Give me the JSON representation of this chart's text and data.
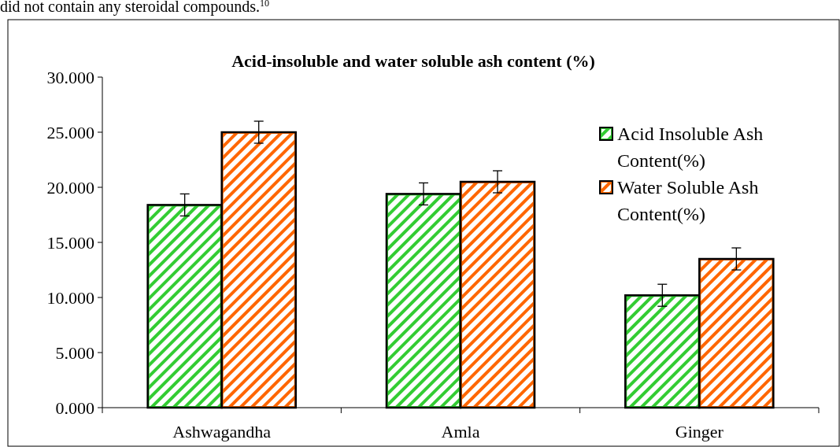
{
  "chart_data": {
    "type": "bar",
    "title": "Acid-insoluble and water soluble ash content (%)",
    "categories": [
      "Ashwagandha",
      "Amla",
      "Ginger"
    ],
    "series": [
      {
        "name": "Acid Insoluble Ash Content(%)",
        "color": "#33cc33",
        "values": [
          18.4,
          19.4,
          10.2
        ],
        "errors": [
          1,
          1,
          1
        ]
      },
      {
        "name": "Water Soluble Ash Content(%)",
        "color": "#ff6600",
        "values": [
          25.0,
          20.5,
          13.5
        ],
        "errors": [
          1,
          1,
          1
        ]
      }
    ],
    "ylim": [
      0,
      30
    ],
    "yticks": [
      {
        "value": 0,
        "label": "0.000"
      },
      {
        "value": 5,
        "label": "5.000"
      },
      {
        "value": 10,
        "label": "10.000"
      },
      {
        "value": 15,
        "label": "15.000"
      },
      {
        "value": 20,
        "label": "20.000"
      },
      {
        "value": 25,
        "label": "25.000"
      },
      {
        "value": 30,
        "label": "30.000"
      }
    ],
    "legend": "right",
    "grid": false,
    "annotations": [
      "did not contain any steroidal compounds.$^{10}$"
    ]
  }
}
